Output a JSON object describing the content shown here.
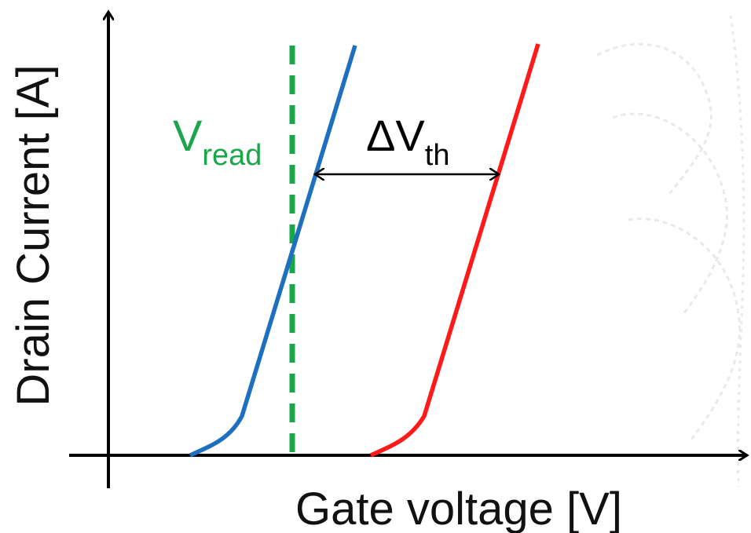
{
  "diagram": {
    "x_axis_label": "Gate voltage [V]",
    "y_axis_label": "Drain Current [A]",
    "read_line": {
      "label_main": "V",
      "label_sub": "read",
      "color": "#1aa64a"
    },
    "threshold_shift": {
      "label_prefix": "ΔV",
      "label_sub": "th"
    },
    "curves": [
      {
        "name": "",
        "color": "#1f6fc0"
      },
      {
        "name": "",
        "color": "#ff1a1a"
      }
    ],
    "axis_color": "#000000",
    "watermark_color": "#d8d8d8"
  }
}
